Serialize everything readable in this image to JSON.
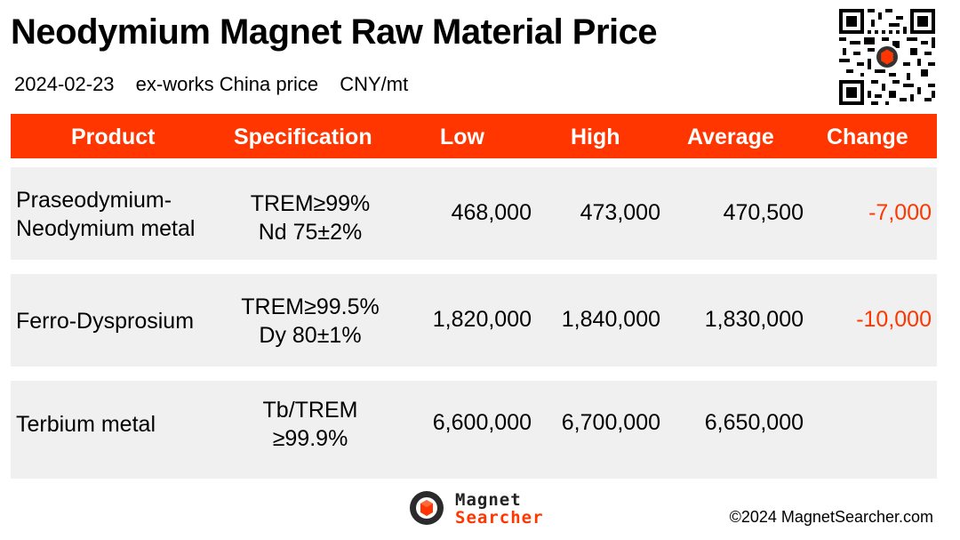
{
  "header": {
    "title": "Neodymium Magnet Raw Material Price",
    "date": "2024-02-23",
    "price_basis": "ex-works China price",
    "unit": "CNY/mt"
  },
  "table": {
    "columns": [
      "Product",
      "Specification",
      "Low",
      "High",
      "Average",
      "Change"
    ],
    "rows": [
      {
        "product_line1": "Praseodymium-",
        "product_line2": "Neodymium metal",
        "spec_line1": "TREM≥99%",
        "spec_line2": "Nd 75±2%",
        "low": "468,000",
        "high": "473,000",
        "average": "470,500",
        "change": "-7,000"
      },
      {
        "product_line1": "Ferro-Dysprosium",
        "product_line2": "",
        "spec_line1": "TREM≥99.5%",
        "spec_line2": "Dy 80±1%",
        "low": "1,820,000",
        "high": "1,840,000",
        "average": "1,830,000",
        "change": "-10,000"
      },
      {
        "product_line1": "Terbium metal",
        "product_line2": "",
        "spec_line1": "Tb/TREM",
        "spec_line2": "≥99.9%",
        "low": "6,600,000",
        "high": "6,700,000",
        "average": "6,650,000",
        "change": ""
      }
    ]
  },
  "footer": {
    "brand_line1": "Magnet",
    "brand_line2": "Searcher",
    "copyright": "©2024 MagnetSearcher.com"
  },
  "colors": {
    "accent": "#ff3600",
    "row_background": "#f0f0f0",
    "negative_change": "#ff3600"
  },
  "icons": {
    "qr": "qr-code-icon",
    "logo": "magnet-searcher-logo-icon"
  }
}
